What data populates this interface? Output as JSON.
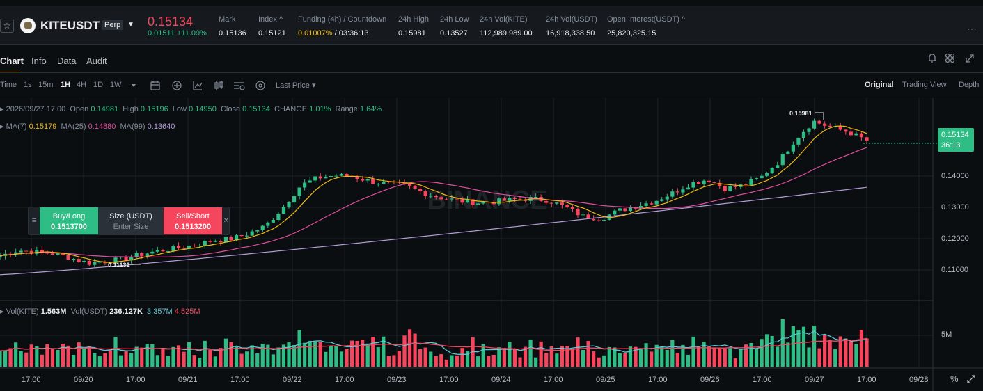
{
  "header": {
    "symbol": "KITEUSDT",
    "contract_type": "Perp",
    "last_price": "0.15134",
    "change_abs": "0.01511",
    "change_pct": "+11.09%",
    "stats": [
      {
        "label": "Mark",
        "value": "0.15136"
      },
      {
        "label": "Index ^",
        "value": "0.15121"
      },
      {
        "label": "Funding (4h) / Countdown",
        "value_rate": "0.01007%",
        "value_countdown": "/ 03:36:13"
      },
      {
        "label": "24h High",
        "value": "0.15981"
      },
      {
        "label": "24h Low",
        "value": "0.13527"
      },
      {
        "label": "24h Vol(KITE)",
        "value": "112,989,989.00"
      },
      {
        "label": "24h Vol(USDT)",
        "value": "16,918,338.50"
      },
      {
        "label": "Open Interest(USDT) ^",
        "value": "25,820,325.15"
      }
    ],
    "more_icon": "more-dots-icon"
  },
  "tabs": [
    "Chart",
    "Info",
    "Data",
    "Audit"
  ],
  "toolbar": {
    "intervals": [
      "Time",
      "1s",
      "15m",
      "1H",
      "4H",
      "1D",
      "1W"
    ],
    "active_interval": "1H",
    "price_type": "Last Price",
    "views": [
      "Original",
      "Trading View",
      "Depth"
    ],
    "active_view": "Original",
    "icons": [
      "dropdown-icon",
      "calendar-icon",
      "crosshair-icon",
      "indicator-icon",
      "chart-type-icon",
      "settings-icon",
      "plus-circle-icon"
    ]
  },
  "ohlc": {
    "date": "2026/09/27 17:00",
    "open_label": "Open",
    "open": "0.14981",
    "high_label": "High",
    "high": "0.15196",
    "low_label": "Low",
    "low": "0.14950",
    "close_label": "Close",
    "close": "0.15134",
    "change_label": "CHANGE",
    "change": "1.01%",
    "range_label": "Range",
    "range": "1.64%"
  },
  "ma": {
    "ma7_label": "MA(7)",
    "ma7": "0.15179",
    "ma25_label": "MA(25)",
    "ma25": "0.14880",
    "ma99_label": "MA(99)",
    "ma99": "0.13640"
  },
  "volume": {
    "kite_label": "Vol(KITE)",
    "kite": "1.563M",
    "usdt_label": "Vol(USDT)",
    "usdt": "236.127K",
    "ma1": "3.357M",
    "ma2": "4.525M"
  },
  "order_box": {
    "buy_label": "Buy/Long",
    "buy_price": "0.1513700",
    "size_label": "Size (USDT)",
    "size_placeholder": "Enter Size",
    "sell_label": "Sell/Short",
    "sell_price": "0.1513200"
  },
  "price_tag": {
    "price": "0.15134",
    "countdown": "36:13"
  },
  "chart_labels": {
    "high_marker": "0.15981",
    "low_marker": "0.11132"
  },
  "y_axis": [
    "0.14000",
    "0.13000",
    "0.12000",
    "0.11000"
  ],
  "vol_axis": [
    "5M"
  ],
  "x_axis": [
    "17:00",
    "09/20",
    "17:00",
    "09/21",
    "17:00",
    "09/22",
    "17:00",
    "09/23",
    "17:00",
    "09/24",
    "17:00",
    "09/25",
    "17:00",
    "09/26",
    "17:00",
    "09/27",
    "17:00",
    "09/28"
  ],
  "colors": {
    "up": "#2ebd85",
    "down": "#f6465d",
    "ma7": "#f0b90b",
    "ma25": "#e24e9e",
    "ma99": "#b39ddb",
    "accent": "#f0b90b"
  },
  "chart_data": {
    "type": "candlestick",
    "interval": "1H",
    "price_range": [
      0.104,
      0.162
    ],
    "close_path": [
      0.1145,
      0.1163,
      0.1158,
      0.1152,
      0.1138,
      0.1122,
      0.1128,
      0.1135,
      0.115,
      0.1162,
      0.117,
      0.118,
      0.1194,
      0.1198,
      0.1215,
      0.124,
      0.13,
      0.137,
      0.1395,
      0.1402,
      0.1398,
      0.1382,
      0.1375,
      0.1368,
      0.1345,
      0.133,
      0.132,
      0.1315,
      0.1318,
      0.1325,
      0.1328,
      0.1322,
      0.13,
      0.127,
      0.1265,
      0.129,
      0.1305,
      0.132,
      0.1345,
      0.1375,
      0.139,
      0.136,
      0.137,
      0.1395,
      0.1445,
      0.152,
      0.1575,
      0.1555,
      0.154,
      0.1513
    ]
  }
}
